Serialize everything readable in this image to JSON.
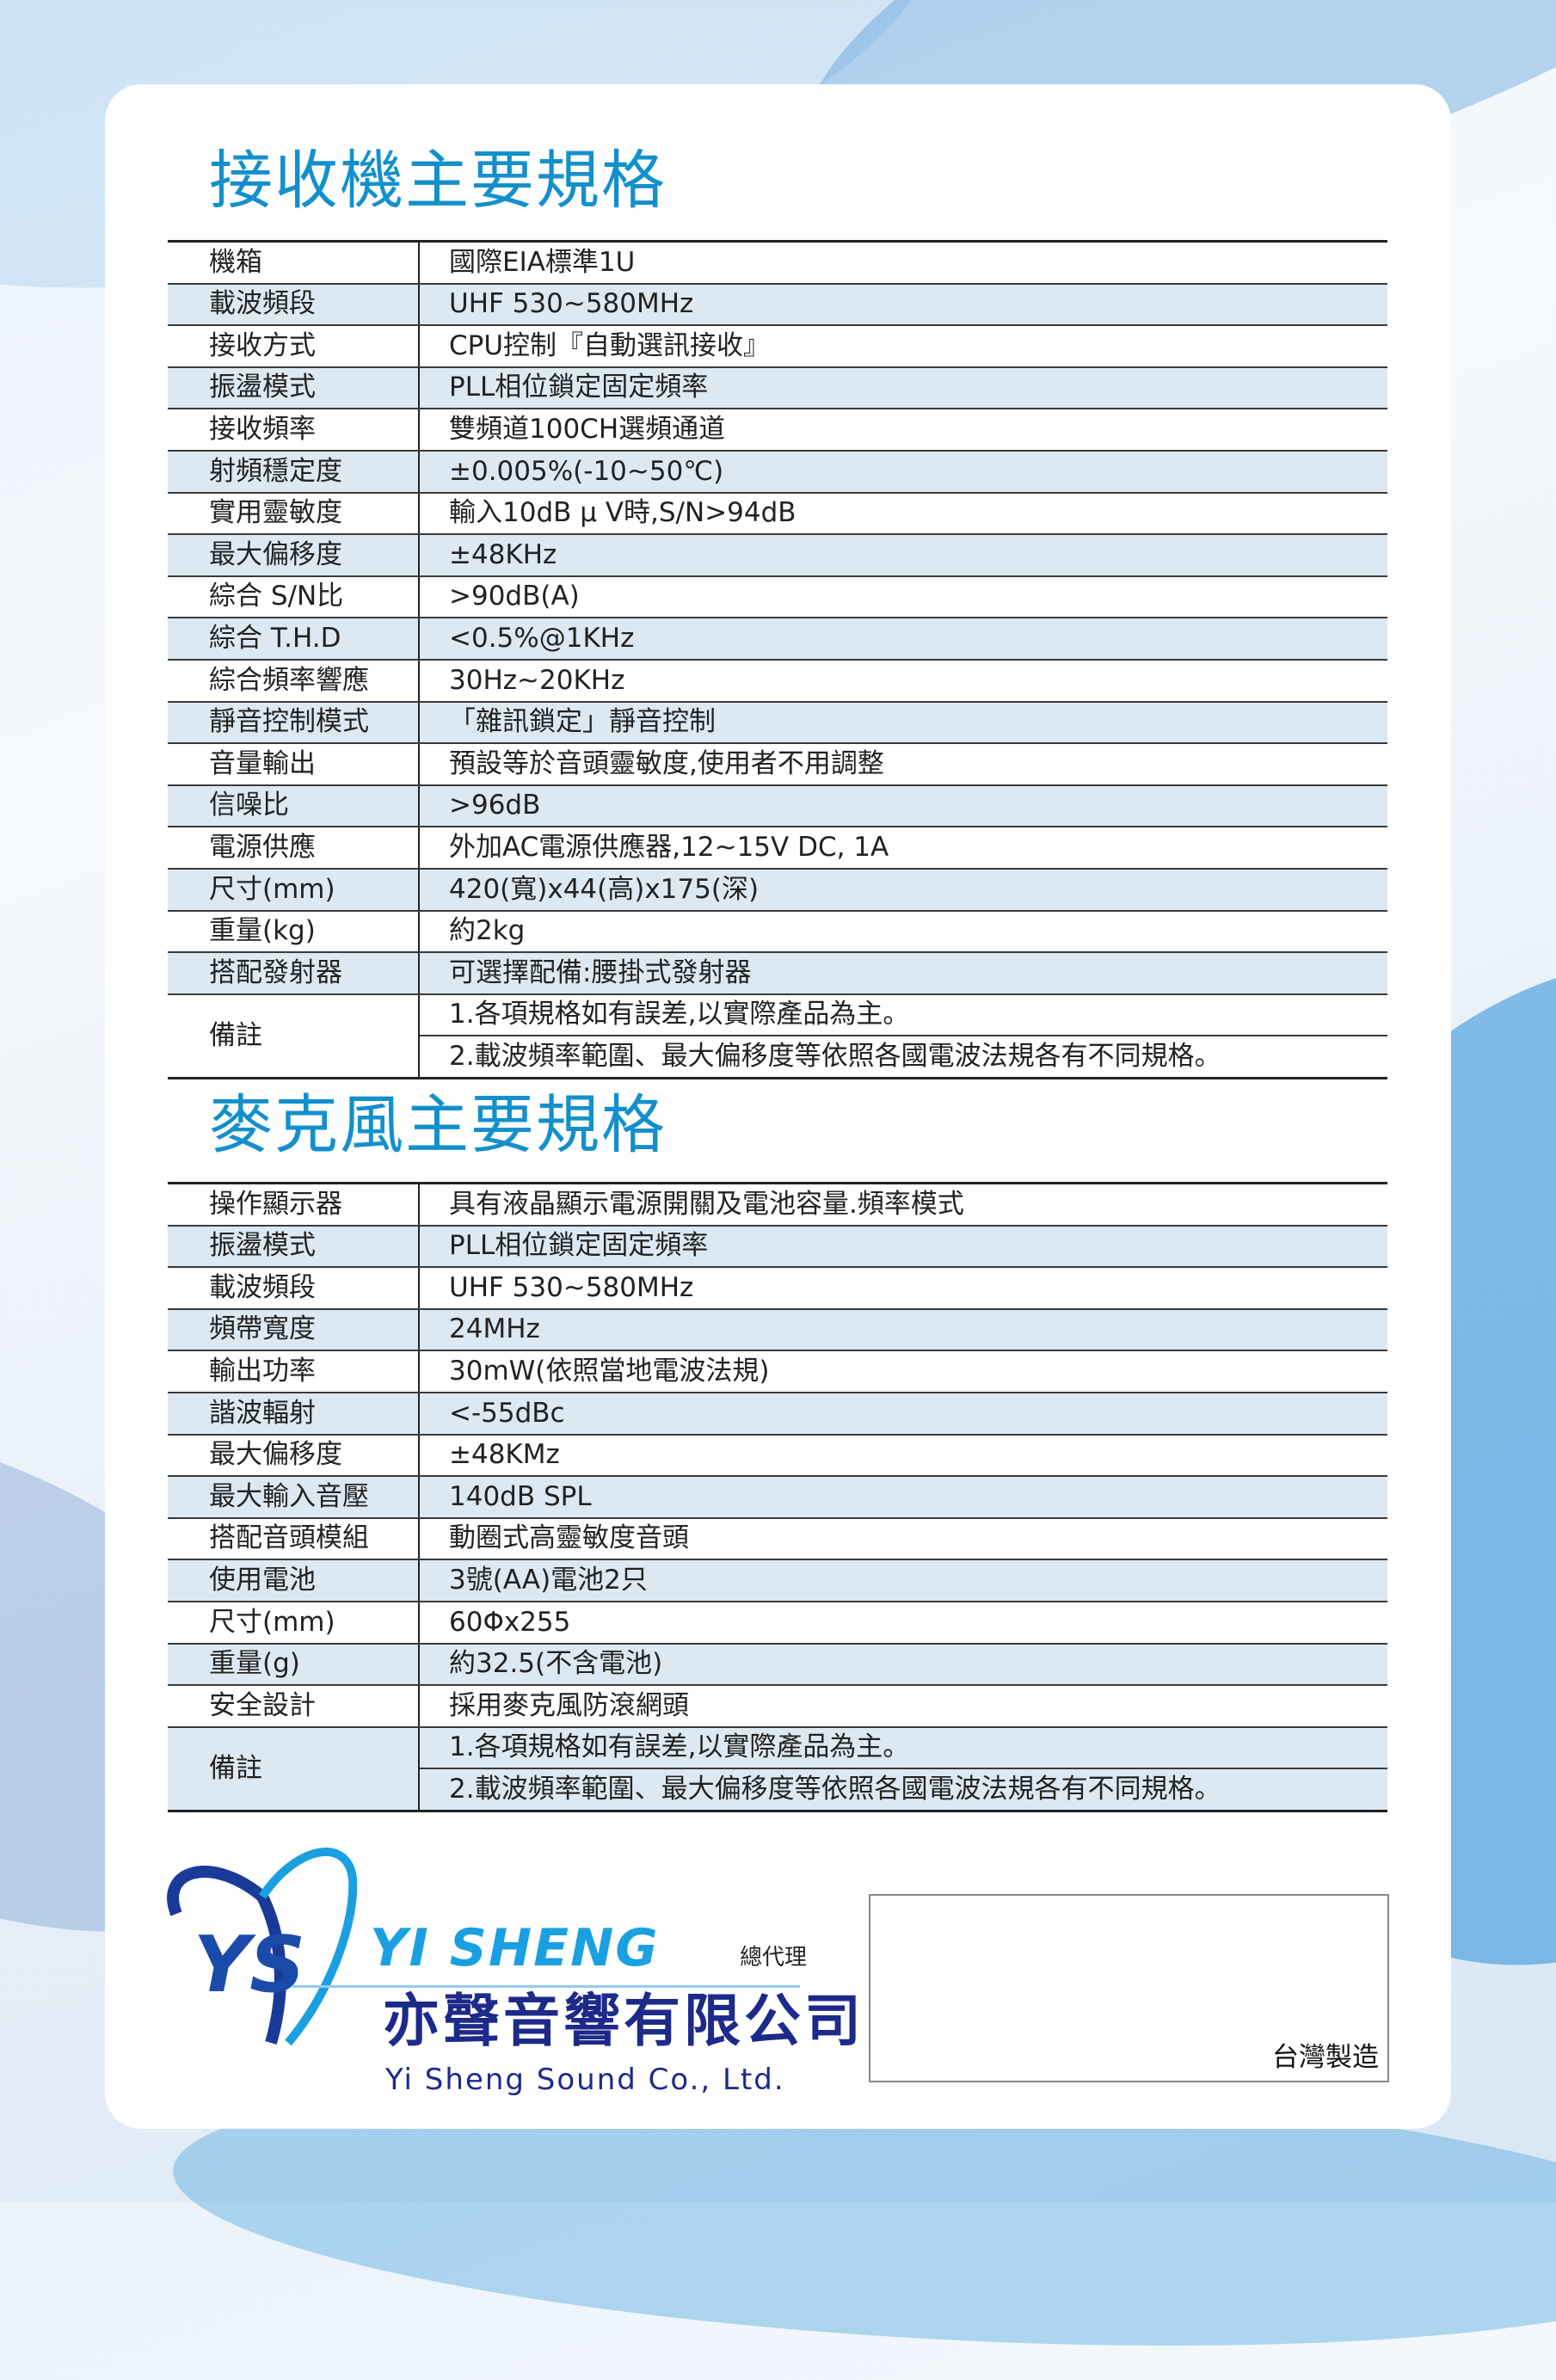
{
  "receiver": {
    "title": "接收機主要規格",
    "rows": [
      {
        "label": "機箱",
        "value": "國際EIA標準1U"
      },
      {
        "label": "載波頻段",
        "value": "UHF 530~580MHz"
      },
      {
        "label": "接收方式",
        "value": "CPU控制『自動選訊接收』"
      },
      {
        "label": "振盪模式",
        "value": "PLL相位鎖定固定頻率"
      },
      {
        "label": "接收頻率",
        "value": "雙頻道100CH選頻通道"
      },
      {
        "label": "射頻穩定度",
        "value": "±0.005%(-10~50℃)"
      },
      {
        "label": "實用靈敏度",
        "value": "輸入10dB μ V時,S/N>94dB"
      },
      {
        "label": "最大偏移度",
        "value": "±48KHz"
      },
      {
        "label": "綜合 S/N比",
        "value": ">90dB(A)"
      },
      {
        "label": "綜合 T.H.D",
        "value": "<0.5%@1KHz"
      },
      {
        "label": "綜合頻率響應",
        "value": "30Hz~20KHz"
      },
      {
        "label": "靜音控制模式",
        "value": "「雜訊鎖定」靜音控制"
      },
      {
        "label": "音量輸出",
        "value": "預設等於音頭靈敏度,使用者不用調整"
      },
      {
        "label": "信噪比",
        "value": ">96dB"
      },
      {
        "label": "電源供應",
        "value": "外加AC電源供應器,12~15V DC, 1A"
      },
      {
        "label": "尺寸(mm)",
        "value": "420(寬)x44(高)x175(深)"
      },
      {
        "label": "重量(kg)",
        "value": "約2kg"
      },
      {
        "label": "搭配發射器",
        "value": "可選擇配備:腰掛式發射器"
      }
    ],
    "notes_label": "備註",
    "notes": [
      "1.各項規格如有誤差,以實際產品為主。",
      "2.載波頻率範圍、最大偏移度等依照各國電波法規各有不同規格。"
    ]
  },
  "microphone": {
    "title": "麥克風主要規格",
    "rows": [
      {
        "label": "操作顯示器",
        "value": "具有液晶顯示電源開關及電池容量.頻率模式"
      },
      {
        "label": "振盪模式",
        "value": "PLL相位鎖定固定頻率"
      },
      {
        "label": "載波頻段",
        "value": "UHF 530~580MHz"
      },
      {
        "label": "頻帶寬度",
        "value": "24MHz"
      },
      {
        "label": "輸出功率",
        "value": "30mW(依照當地電波法規)"
      },
      {
        "label": "諧波輻射",
        "value": "<-55dBc"
      },
      {
        "label": "最大偏移度",
        "value": "±48KMz"
      },
      {
        "label": "最大輸入音壓",
        "value": "140dB SPL"
      },
      {
        "label": "搭配音頭模組",
        "value": "動圈式高靈敏度音頭"
      },
      {
        "label": "使用電池",
        "value": "3號(AA)電池2只"
      },
      {
        "label": "尺寸(mm)",
        "value": "60Φx255"
      },
      {
        "label": "重量(g)",
        "value": "約32.5(不含電池)"
      },
      {
        "label": "安全設計",
        "value": "採用麥克風防滾網頭"
      }
    ],
    "notes_label": "備註",
    "notes": [
      "1.各項規格如有誤差,以實際產品為主。",
      "2.載波頻率範圍、最大偏移度等依照各國電波法規各有不同規格。"
    ]
  },
  "footer": {
    "brand": "YI SHENG",
    "agent_label": "總代理",
    "company_zh": "亦聲音響有限公司",
    "company_en": "Yi Sheng Sound Co., Ltd.",
    "made_in": "台灣製造"
  },
  "colors": {
    "title": "#1390cc",
    "row_alt": "#dce9f2",
    "company": "#1d2a8a",
    "brand": "#1aa0e0"
  }
}
